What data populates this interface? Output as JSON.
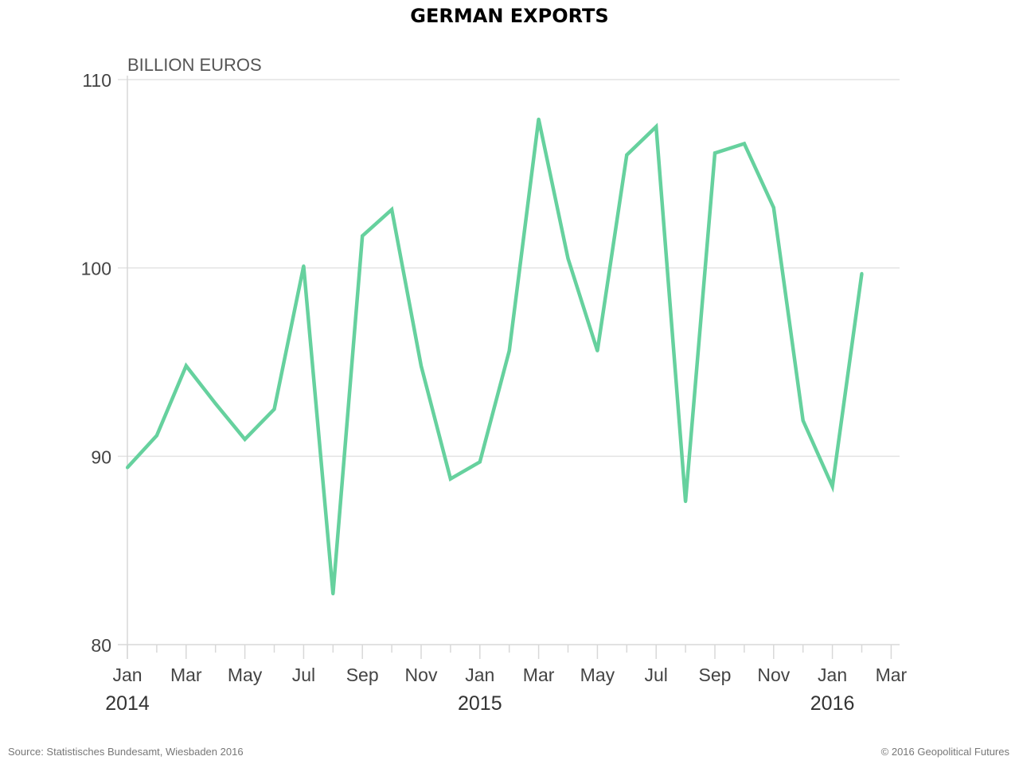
{
  "chart_data": {
    "type": "line",
    "title": "GERMAN EXPORTS",
    "ylabel": "BILLION EUROS",
    "xlabel": "",
    "ylim": [
      80,
      110
    ],
    "yticks": [
      80,
      90,
      100,
      110
    ],
    "grid": true,
    "x_tick_labels": [
      "Jan",
      "Mar",
      "May",
      "Jul",
      "Sep",
      "Nov",
      "Jan",
      "Mar",
      "May",
      "Jul",
      "Sep",
      "Nov",
      "Jan",
      "Mar"
    ],
    "year_labels": [
      {
        "label": "2014",
        "month_index": 0
      },
      {
        "label": "2015",
        "month_index": 12
      },
      {
        "label": "2016",
        "month_index": 24
      }
    ],
    "months_total": 27,
    "series": [
      {
        "name": "German exports",
        "color": "#66d19e",
        "x": [
          "2014-01",
          "2014-02",
          "2014-03",
          "2014-04",
          "2014-05",
          "2014-06",
          "2014-07",
          "2014-08",
          "2014-09",
          "2014-10",
          "2014-11",
          "2014-12",
          "2015-01",
          "2015-02",
          "2015-03",
          "2015-04",
          "2015-05",
          "2015-06",
          "2015-07",
          "2015-08",
          "2015-09",
          "2015-10",
          "2015-11",
          "2015-12",
          "2016-01",
          "2016-02"
        ],
        "values": [
          89.4,
          91.1,
          94.8,
          92.8,
          90.9,
          92.5,
          100.1,
          82.7,
          101.7,
          103.1,
          94.8,
          88.8,
          89.7,
          95.6,
          107.9,
          100.5,
          95.6,
          106.0,
          107.5,
          87.6,
          106.1,
          106.6,
          103.2,
          91.9,
          88.4,
          99.7
        ]
      }
    ]
  },
  "footer": {
    "source": "Source:  Statistisches Bundesamt, Wiesbaden 2016",
    "copyright": "© 2016 Geopolitical Futures"
  }
}
